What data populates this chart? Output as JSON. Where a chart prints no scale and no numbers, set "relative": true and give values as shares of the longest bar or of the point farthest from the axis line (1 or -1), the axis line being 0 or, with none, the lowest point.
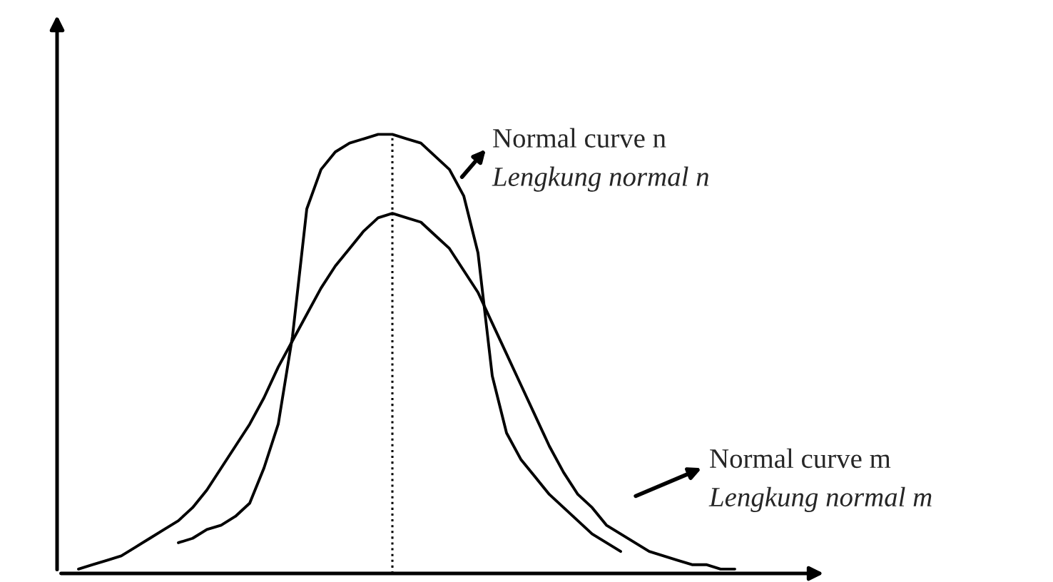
{
  "chart_data": {
    "type": "line",
    "relative": true,
    "categories": [
      null,
      null,
      null,
      null,
      null,
      null,
      null,
      null,
      null,
      null,
      null,
      null,
      null,
      null,
      null,
      null,
      null,
      null,
      null,
      null,
      null,
      null,
      null,
      null,
      null,
      null,
      null,
      null,
      null,
      null,
      null,
      null,
      null,
      null,
      null,
      null,
      null,
      null,
      null,
      null,
      null,
      null,
      null,
      null,
      null,
      null,
      null
    ],
    "series": [
      {
        "color": "#000000",
        "values": [
          0.01,
          0.02,
          0.03,
          0.04,
          0.06,
          0.08,
          0.1,
          0.12,
          0.15,
          0.19,
          0.24,
          0.29,
          0.34,
          0.4,
          0.47,
          0.53,
          0.59,
          0.65,
          0.7,
          0.74,
          0.78,
          0.81,
          0.82,
          0.81,
          0.8,
          0.77,
          0.74,
          0.69,
          0.64,
          0.57,
          0.5,
          0.43,
          0.36,
          0.29,
          0.23,
          0.18,
          0.15,
          0.11,
          0.09,
          0.07,
          0.05,
          0.04,
          0.03,
          0.02,
          0.02,
          0.01,
          0.01
        ]
      },
      {
        "color": "#000000",
        "values": [
          null,
          null,
          null,
          null,
          null,
          null,
          null,
          0.07,
          0.08,
          0.1,
          0.11,
          0.13,
          0.16,
          0.24,
          0.34,
          0.54,
          0.83,
          0.92,
          0.96,
          0.98,
          0.99,
          1.0,
          1.0,
          0.99,
          0.98,
          0.95,
          0.92,
          0.86,
          0.73,
          0.45,
          0.32,
          0.26,
          0.22,
          0.18,
          0.15,
          0.12,
          0.09,
          0.07,
          0.05,
          null,
          null,
          null,
          null,
          null,
          null,
          null,
          null
        ]
      }
    ],
    "annotations": [
      "Normal curve n\nLengkung normal n",
      "Normal curve m\nLengkung normal m"
    ]
  }
}
